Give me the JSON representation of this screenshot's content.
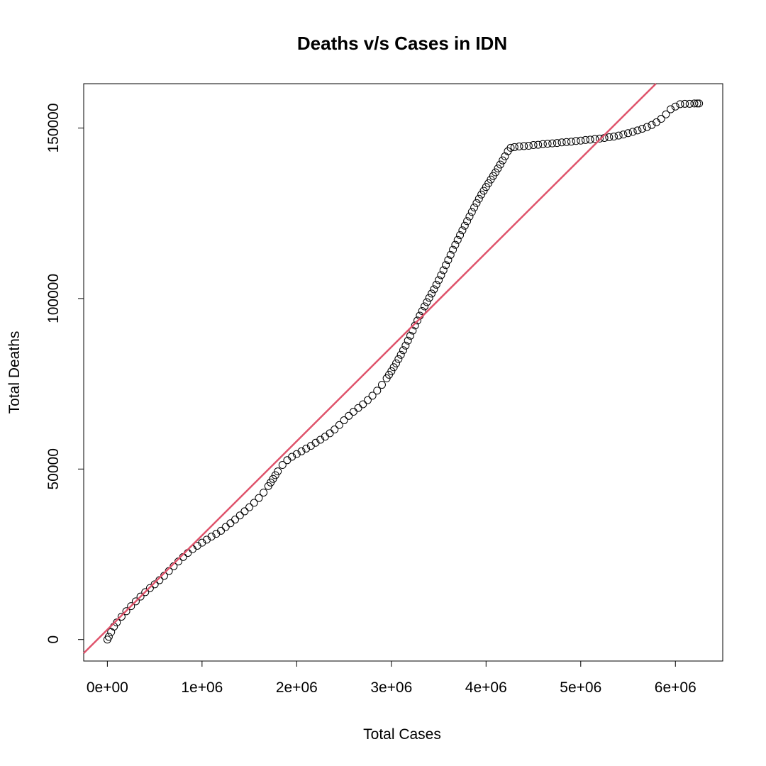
{
  "chart_data": {
    "type": "scatter",
    "title": "Deaths v/s Cases in IDN",
    "xlabel": "Total Cases",
    "ylabel": "Total Deaths",
    "xlim": [
      -250000,
      6500000
    ],
    "ylim": [
      -6300,
      163000
    ],
    "x_ticks": [
      0,
      1000000,
      2000000,
      3000000,
      4000000,
      5000000,
      6000000
    ],
    "x_tick_labels": [
      "0e+00",
      "1e+06",
      "2e+06",
      "3e+06",
      "4e+06",
      "5e+06",
      "6e+06"
    ],
    "y_ticks": [
      0,
      50000,
      100000,
      150000
    ],
    "y_tick_labels": [
      "0",
      "50000",
      "100000",
      "150000"
    ],
    "grid": false,
    "series_color": "#000000",
    "trend_color": "#DF536B",
    "trend_line": {
      "intercept": 2900,
      "slope": 0.02763
    },
    "series": [
      {
        "values": [
          [
            0,
            0
          ],
          [
            15000,
            800
          ],
          [
            40000,
            2200
          ],
          [
            70000,
            3800
          ],
          [
            100000,
            5000
          ],
          [
            150000,
            6700
          ],
          [
            200000,
            8300
          ],
          [
            250000,
            9800
          ],
          [
            300000,
            11200
          ],
          [
            350000,
            12600
          ],
          [
            400000,
            13900
          ],
          [
            450000,
            15100
          ],
          [
            500000,
            16200
          ],
          [
            550000,
            17400
          ],
          [
            600000,
            18700
          ],
          [
            650000,
            20100
          ],
          [
            700000,
            21500
          ],
          [
            750000,
            22900
          ],
          [
            800000,
            24200
          ],
          [
            850000,
            25400
          ],
          [
            900000,
            26500
          ],
          [
            950000,
            27500
          ],
          [
            1000000,
            28400
          ],
          [
            1050000,
            29300
          ],
          [
            1100000,
            30200
          ],
          [
            1150000,
            31000
          ],
          [
            1200000,
            31900
          ],
          [
            1250000,
            33000
          ],
          [
            1300000,
            34100
          ],
          [
            1350000,
            35200
          ],
          [
            1400000,
            36400
          ],
          [
            1450000,
            37600
          ],
          [
            1500000,
            38800
          ],
          [
            1550000,
            40100
          ],
          [
            1600000,
            41500
          ],
          [
            1650000,
            43100
          ],
          [
            1700000,
            45000
          ],
          [
            1750000,
            47100
          ],
          [
            1800000,
            49300
          ],
          [
            1850000,
            51200
          ],
          [
            1900000,
            52600
          ],
          [
            1950000,
            53600
          ],
          [
            2000000,
            54400
          ],
          [
            2050000,
            55200
          ],
          [
            2100000,
            56000
          ],
          [
            2150000,
            56800
          ],
          [
            2200000,
            57700
          ],
          [
            2250000,
            58600
          ],
          [
            2300000,
            59500
          ],
          [
            2350000,
            60500
          ],
          [
            2400000,
            61600
          ],
          [
            2450000,
            62900
          ],
          [
            2500000,
            64300
          ],
          [
            2550000,
            65600
          ],
          [
            2600000,
            66800
          ],
          [
            2650000,
            67900
          ],
          [
            2700000,
            69000
          ],
          [
            2750000,
            70200
          ],
          [
            2800000,
            71500
          ],
          [
            2850000,
            73000
          ],
          [
            2900000,
            74700
          ],
          [
            2950000,
            76600
          ],
          [
            3000000,
            78700
          ],
          [
            3050000,
            81000
          ],
          [
            3100000,
            83500
          ],
          [
            3150000,
            86200
          ],
          [
            3200000,
            89100
          ],
          [
            3250000,
            92100
          ],
          [
            3300000,
            95000
          ],
          [
            3350000,
            97700
          ],
          [
            3400000,
            100200
          ],
          [
            3450000,
            102700
          ],
          [
            3500000,
            105400
          ],
          [
            3550000,
            108300
          ],
          [
            3600000,
            111300
          ],
          [
            3650000,
            114300
          ],
          [
            3700000,
            117200
          ],
          [
            3750000,
            120000
          ],
          [
            3800000,
            122700
          ],
          [
            3850000,
            125400
          ],
          [
            3900000,
            128000
          ],
          [
            3950000,
            130500
          ],
          [
            4000000,
            132700
          ],
          [
            4050000,
            134900
          ],
          [
            4100000,
            137000
          ],
          [
            4150000,
            139300
          ],
          [
            4200000,
            141700
          ],
          [
            4230000,
            143200
          ],
          [
            4260000,
            144200
          ],
          [
            4300000,
            144400
          ],
          [
            4350000,
            144600
          ],
          [
            4400000,
            144700
          ],
          [
            4450000,
            144800
          ],
          [
            4500000,
            145000
          ],
          [
            4550000,
            145100
          ],
          [
            4600000,
            145300
          ],
          [
            4650000,
            145400
          ],
          [
            4700000,
            145500
          ],
          [
            4750000,
            145600
          ],
          [
            4800000,
            145800
          ],
          [
            4850000,
            145900
          ],
          [
            4900000,
            146000
          ],
          [
            4950000,
            146200
          ],
          [
            5000000,
            146300
          ],
          [
            5050000,
            146500
          ],
          [
            5100000,
            146600
          ],
          [
            5150000,
            146800
          ],
          [
            5200000,
            146900
          ],
          [
            5250000,
            147100
          ],
          [
            5300000,
            147300
          ],
          [
            5350000,
            147500
          ],
          [
            5400000,
            147800
          ],
          [
            5450000,
            148100
          ],
          [
            5500000,
            148500
          ],
          [
            5550000,
            148900
          ],
          [
            5600000,
            149300
          ],
          [
            5650000,
            149800
          ],
          [
            5700000,
            150300
          ],
          [
            5750000,
            150900
          ],
          [
            5800000,
            151700
          ],
          [
            5850000,
            152700
          ],
          [
            5900000,
            154000
          ],
          [
            5950000,
            155500
          ],
          [
            6000000,
            156300
          ],
          [
            6050000,
            157000
          ],
          [
            6100000,
            157100
          ],
          [
            6150000,
            157100
          ],
          [
            6200000,
            157200
          ],
          [
            6230000,
            157200
          ],
          [
            6250000,
            157200
          ]
        ]
      }
    ]
  }
}
